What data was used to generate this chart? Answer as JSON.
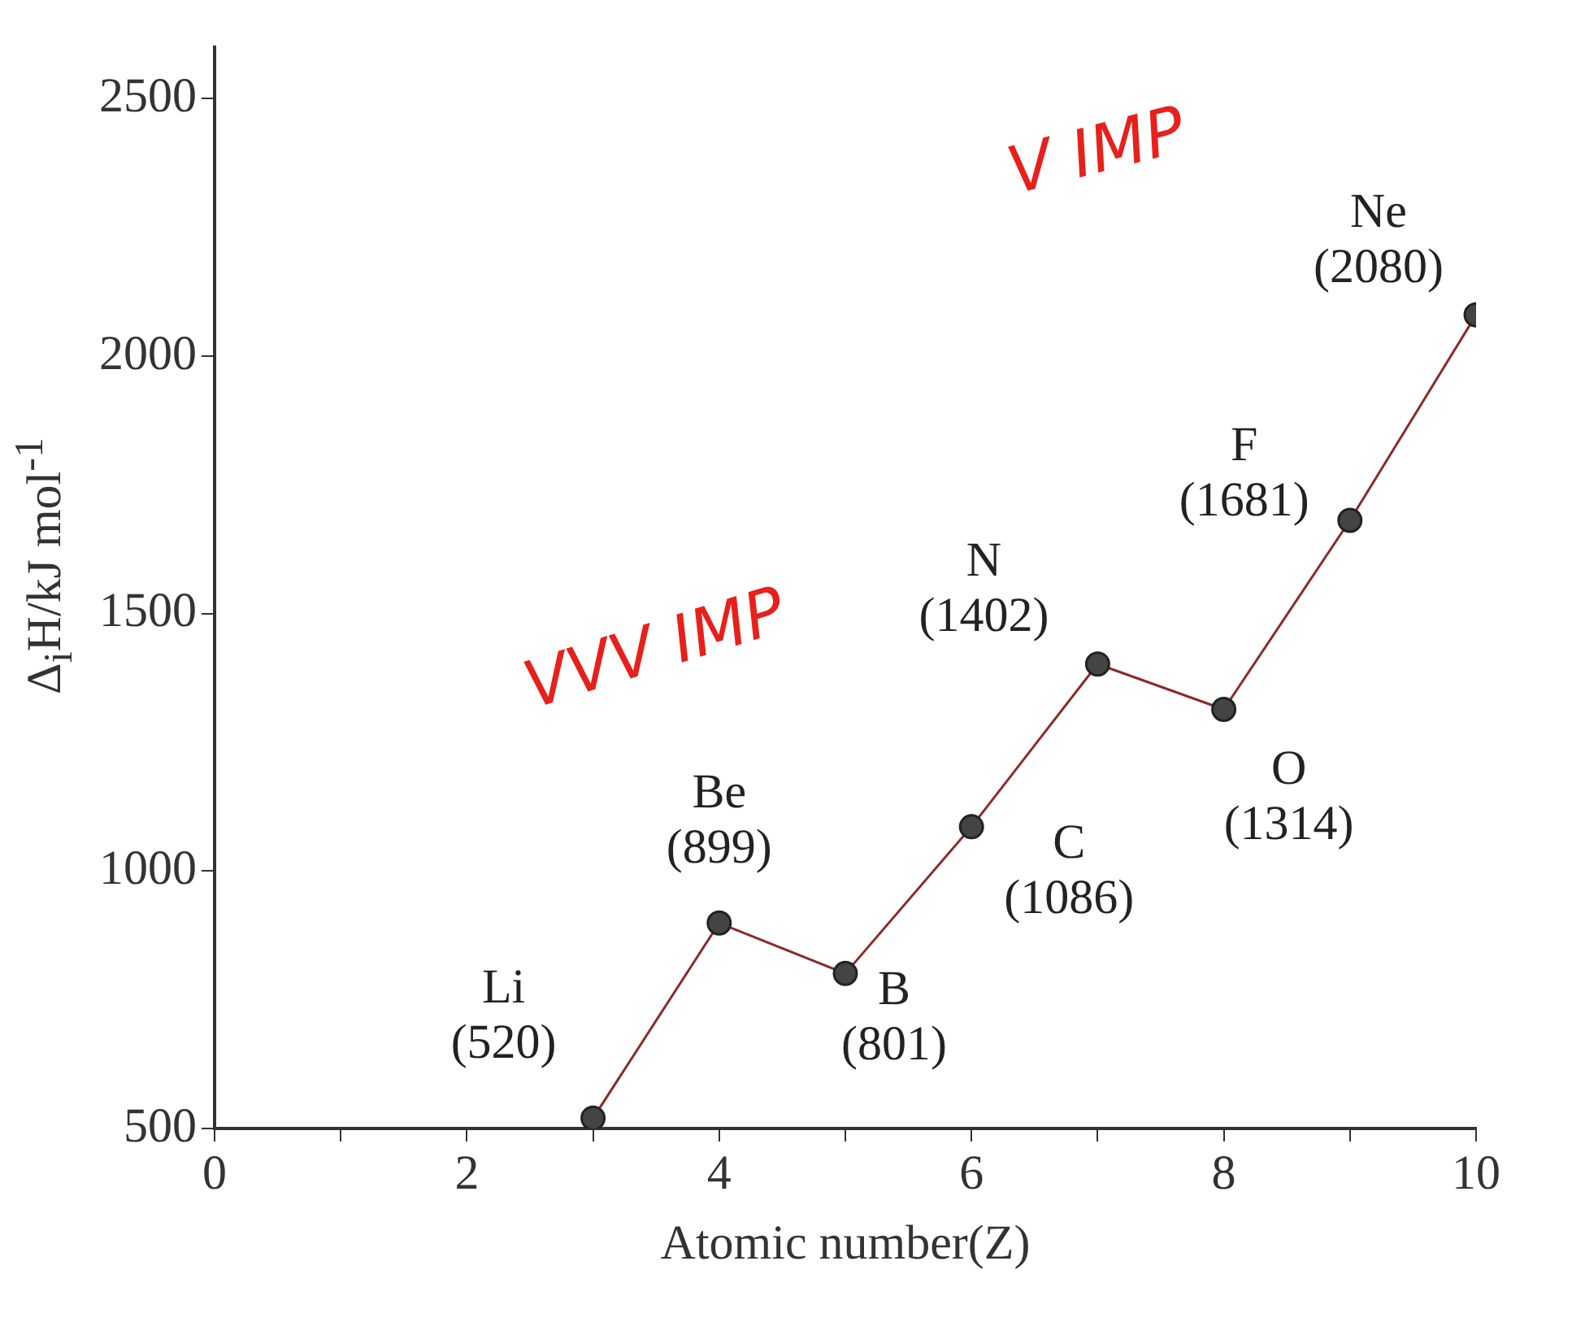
{
  "chart_data": {
    "type": "line",
    "xlabel": "Atomic number(Z)",
    "ylabel": "Δ$_{i}$H/kJ mol$^{-1}$",
    "x": [
      3,
      4,
      5,
      6,
      7,
      8,
      9,
      10
    ],
    "series": [
      {
        "color": "#8b2a2a",
        "values": [
          520,
          899,
          801,
          1086,
          1402,
          1314,
          1681,
          2080
        ]
      }
    ],
    "xlim": [
      0,
      10
    ],
    "xticks": [
      0,
      {
        "value": 1,
        "label": null
      },
      2,
      {
        "value": 3,
        "label": null
      },
      4,
      {
        "value": 5,
        "label": null
      },
      6,
      {
        "value": 7,
        "label": null
      },
      8,
      {
        "value": 9,
        "label": null
      },
      10
    ],
    "ylim": [
      500,
      2600
    ],
    "yticks": [
      500,
      1000,
      1500,
      2000,
      2500
    ],
    "grid": false,
    "legend": false,
    "marker": "circle",
    "line_style": "solid",
    "annotations": [
      {
        "text": "Li (520)",
        "x": 3,
        "y": 520
      },
      {
        "text": "Be (899)",
        "x": 4,
        "y": 899
      },
      {
        "text": "B (801)",
        "x": 5,
        "y": 801
      },
      {
        "text": "C (1086)",
        "x": 6,
        "y": 1086
      },
      {
        "text": "N (1402)",
        "x": 7,
        "y": 1402
      },
      {
        "text": "O (1314)",
        "x": 8,
        "y": 1314
      },
      {
        "text": "F (1681)",
        "x": 9,
        "y": 1681
      },
      {
        "text": "Ne (2080)",
        "x": 10,
        "y": 2080
      },
      "VVV IMP",
      "V IMP"
    ]
  }
}
